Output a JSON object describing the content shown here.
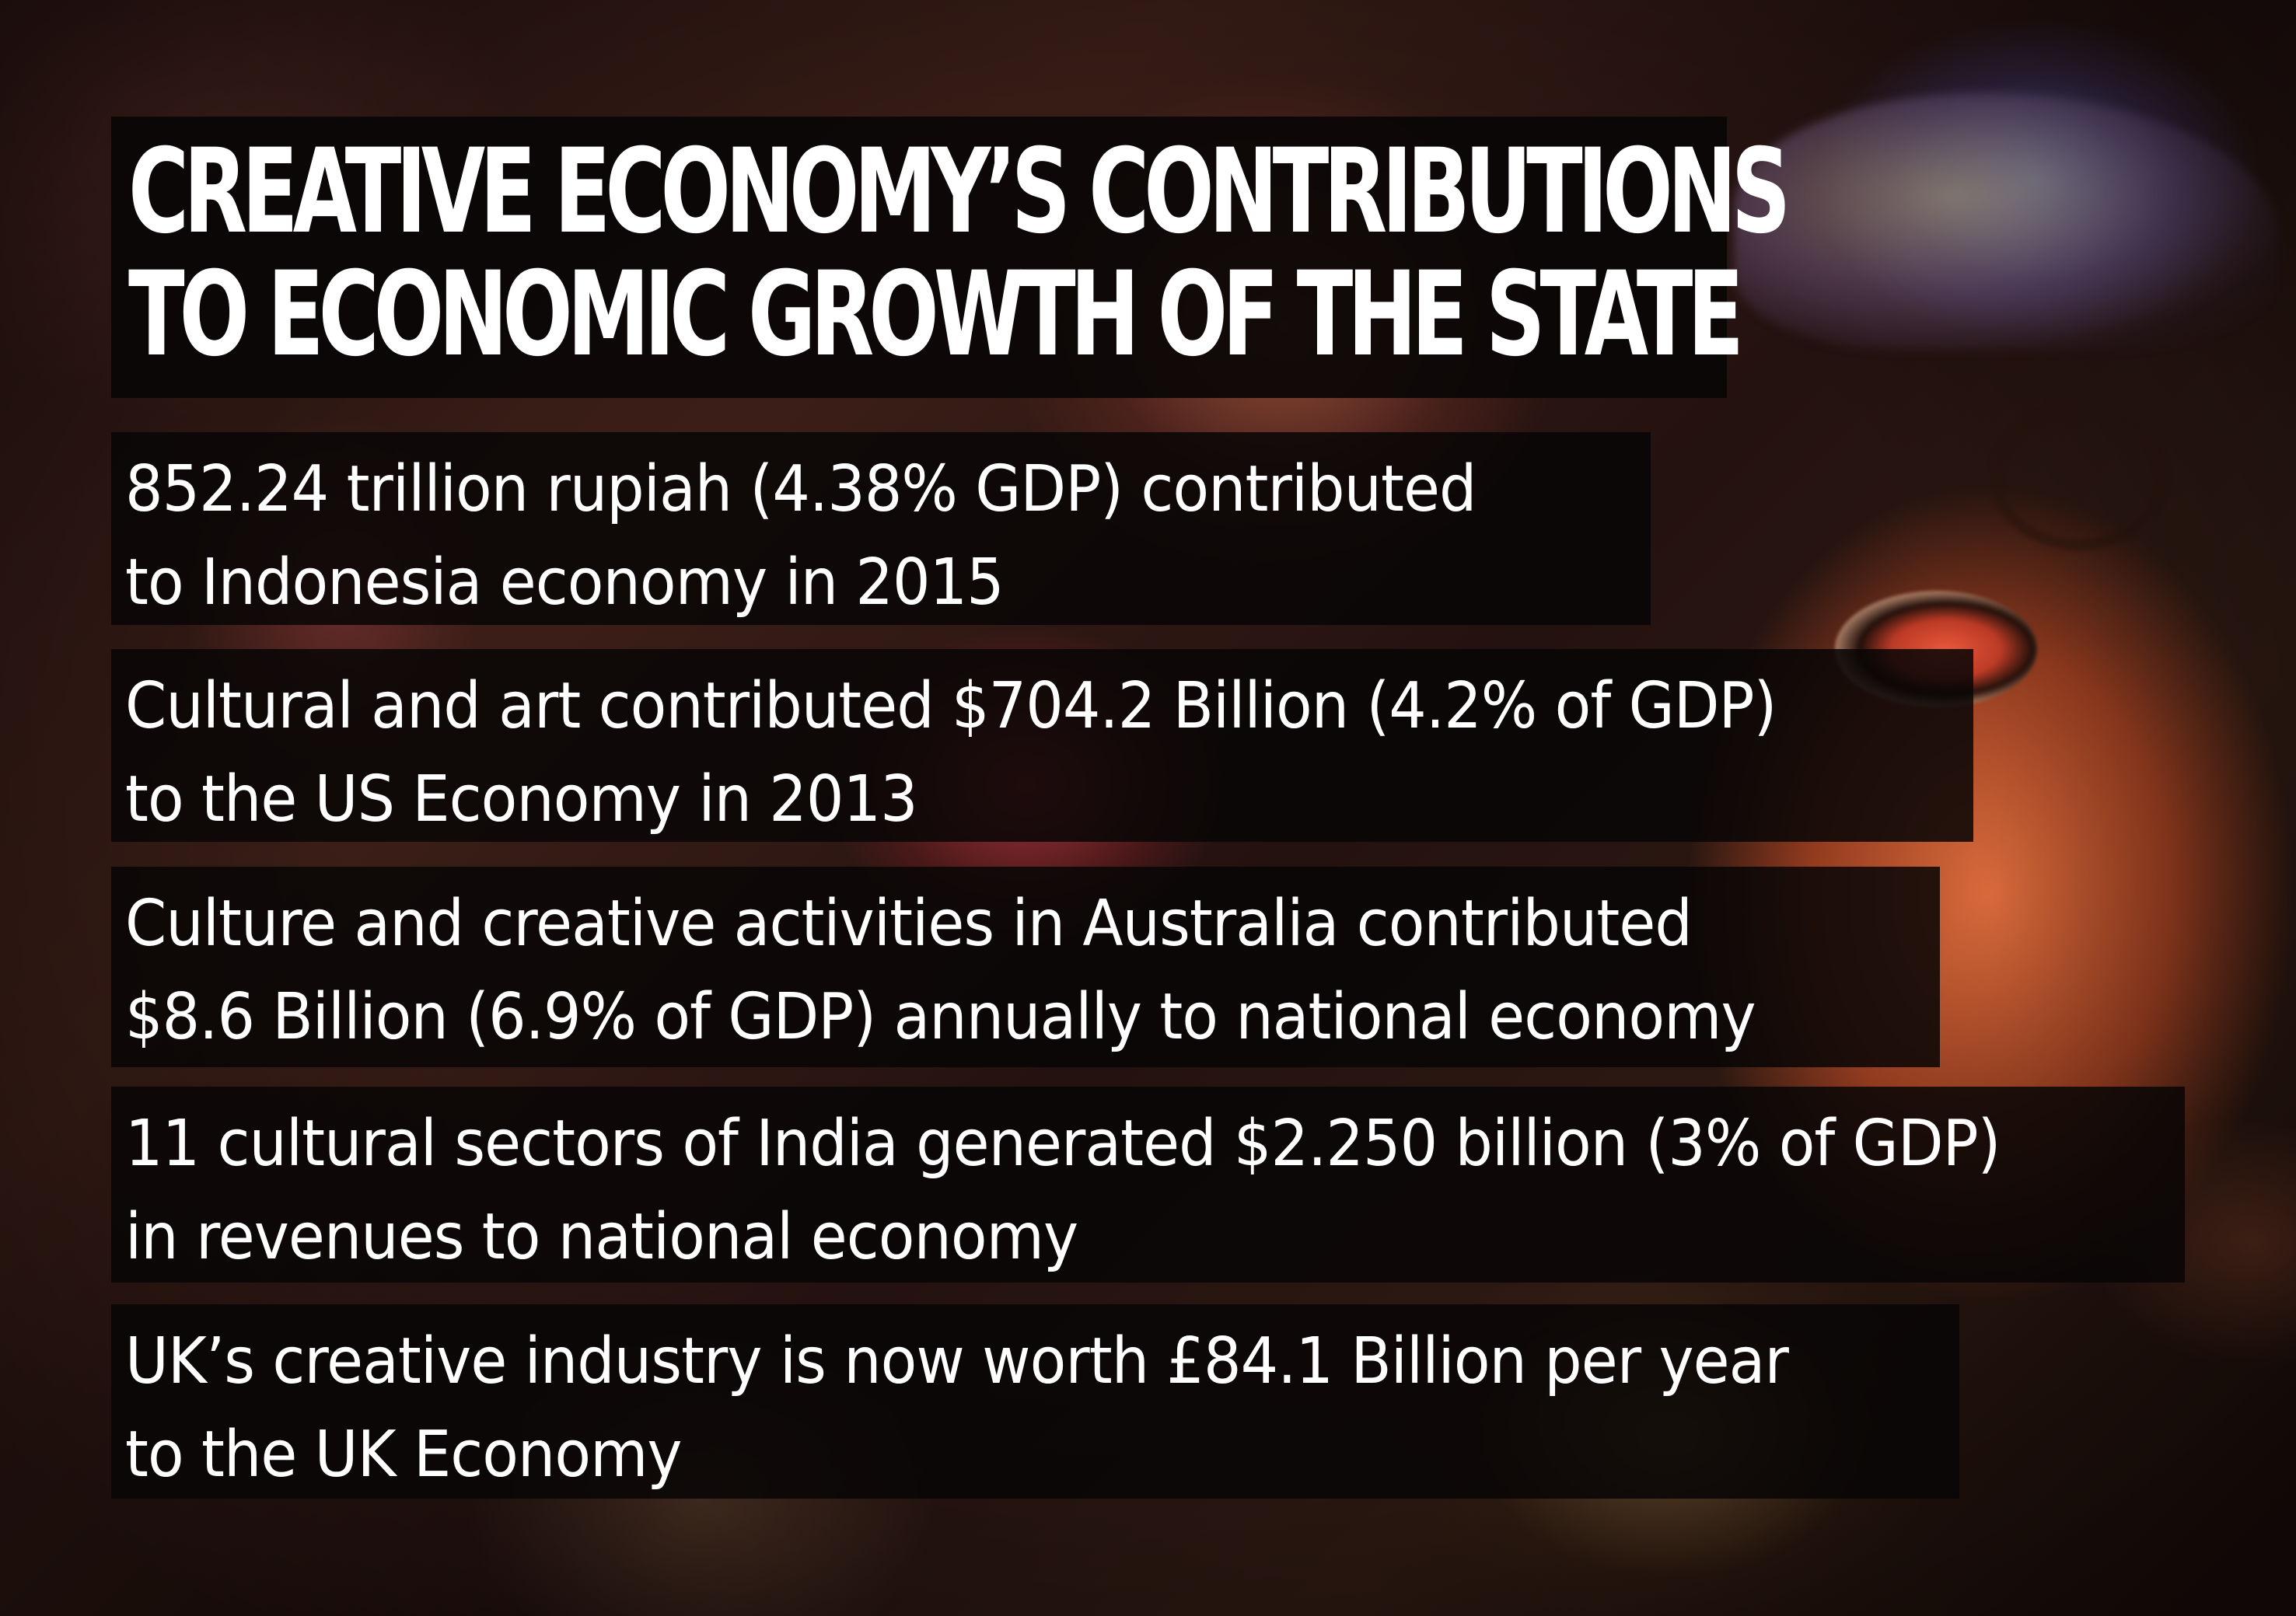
{
  "title": {
    "line1": "CREATIVE ECONOMY’S CONTRIBUTIONS",
    "line2": "TO ECONOMIC GROWTH OF THE STATE"
  },
  "facts": [
    {
      "line1": "852.24 trillion rupiah (4.38% GDP) contributed",
      "line2": "to Indonesia economy in 2015"
    },
    {
      "line1": "Cultural and art contributed $704.2  Billion (4.2% of GDP)",
      "line2": "to the US Economy in 2013"
    },
    {
      "line1": "Culture and creative activities in Australia contributed",
      "line2": "$8.6 Billion (6.9% of GDP) annually to national economy"
    },
    {
      "line1": "11 cultural sectors of India generated $2.250 billion (3% of GDP)",
      "line2": "in revenues to national economy"
    },
    {
      "line1": "UK’s creative industry is now worth £84.1 Billion per year",
      "line2": "to the UK Economy"
    }
  ],
  "colors": {
    "text": "#ffffff",
    "panel": "#0a0606",
    "mask_orange": "#e4703e"
  }
}
